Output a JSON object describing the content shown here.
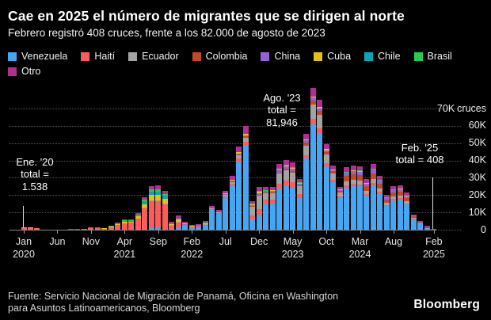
{
  "header": {
    "title": "Cae en 2025 el número de migrantes que se dirigen al norte",
    "subtitle": "Febrero registró 408 cruces, frente a los 82.000 de agosto de 2023"
  },
  "legend": {
    "row_split": 8
  },
  "annotations": [
    {
      "id": "ene20",
      "lines": [
        "Ene. '20",
        "total =",
        "1.538"
      ]
    },
    {
      "id": "ago23",
      "lines": [
        "Ago. '23",
        "total =",
        "81,946"
      ]
    },
    {
      "id": "feb25",
      "lines": [
        "Feb. '25",
        "total = 408"
      ]
    }
  ],
  "y_axis": {
    "unit": "cruces",
    "ticks": [
      {
        "value": 70000,
        "label": "70K"
      },
      {
        "value": 60000,
        "label": "60K"
      },
      {
        "value": 50000,
        "label": "50K"
      },
      {
        "value": 40000,
        "label": "40K"
      },
      {
        "value": 30000,
        "label": "30K"
      },
      {
        "value": 20000,
        "label": "20K"
      },
      {
        "value": 10000,
        "label": "10K"
      },
      {
        "value": 0,
        "label": "0"
      }
    ]
  },
  "footer": {
    "line1": "Fuente: Servicio Nacional de Migración de Panamá, Oficina en Washington",
    "line2": "para Asuntos Latinoamericanos, Bloomberg",
    "logo": "Bloomberg"
  },
  "chart_data": {
    "type": "bar",
    "stacked": true,
    "title": "Cae en 2025 el número de migrantes que se dirigen al norte",
    "ylabel": "cruces",
    "ylim": [
      0,
      70000
    ],
    "grid": "horizontal-dotted",
    "legend_position": "top",
    "x_months": [
      "2020-01",
      "2020-02",
      "2020-03",
      "2020-04",
      "2020-05",
      "2020-06",
      "2020-07",
      "2020-08",
      "2020-09",
      "2020-10",
      "2020-11",
      "2020-12",
      "2021-01",
      "2021-02",
      "2021-03",
      "2021-04",
      "2021-05",
      "2021-06",
      "2021-07",
      "2021-08",
      "2021-09",
      "2021-10",
      "2021-11",
      "2021-12",
      "2022-01",
      "2022-02",
      "2022-03",
      "2022-04",
      "2022-05",
      "2022-06",
      "2022-07",
      "2022-08",
      "2022-09",
      "2022-10",
      "2022-11",
      "2022-12",
      "2023-01",
      "2023-02",
      "2023-03",
      "2023-04",
      "2023-05",
      "2023-06",
      "2023-07",
      "2023-08",
      "2023-09",
      "2023-10",
      "2023-11",
      "2023-12",
      "2024-01",
      "2024-02",
      "2024-03",
      "2024-04",
      "2024-05",
      "2024-06",
      "2024-07",
      "2024-08",
      "2024-09",
      "2024-10",
      "2024-11",
      "2024-12",
      "2025-01",
      "2025-02"
    ],
    "x_ticks": [
      {
        "index": 0,
        "month": "Jan",
        "year": "2020"
      },
      {
        "index": 5,
        "month": "Jun"
      },
      {
        "index": 10,
        "month": "Nov"
      },
      {
        "index": 15,
        "month": "Apr",
        "year": "2021"
      },
      {
        "index": 20,
        "month": "Sep"
      },
      {
        "index": 25,
        "month": "Feb",
        "year": "2022"
      },
      {
        "index": 30,
        "month": "Jul"
      },
      {
        "index": 35,
        "month": "Dec"
      },
      {
        "index": 40,
        "month": "May",
        "year": "2023"
      },
      {
        "index": 45,
        "month": "Oct"
      },
      {
        "index": 50,
        "month": "Mar",
        "year": "2024"
      },
      {
        "index": 55,
        "month": "Aug"
      },
      {
        "index": 61,
        "month": "Feb",
        "year": "2025"
      }
    ],
    "key_points": [
      {
        "label": "Ene. '20 total",
        "value": 1538
      },
      {
        "label": "Ago. '23 total",
        "value": 81946
      },
      {
        "label": "Feb. '25 total",
        "value": 408
      }
    ],
    "series": [
      {
        "name": "Venezuela",
        "color": "#46a6f2",
        "values": [
          60,
          60,
          40,
          0,
          0,
          0,
          0,
          0,
          0,
          30,
          60,
          60,
          30,
          70,
          120,
          175,
          180,
          290,
          565,
          760,
          765,
          680,
          690,
          1190,
          2115,
          1330,
          1495,
          2275,
          11395,
          9315,
          18515,
          25465,
          39525,
          49015,
          5820,
          8660,
          15275,
          15285,
          23620,
          24985,
          24155,
          18205,
          40985,
          60640,
          55700,
          36580,
          27420,
          18225,
          24480,
          25275,
          25050,
          19895,
          25830,
          21115,
          13660,
          17075,
          17540,
          14525,
          6055,
          3295,
          865,
          165
        ]
      },
      {
        "name": "Haití",
        "color": "#fb5d5f",
        "values": [
          950,
          980,
          690,
          90,
          16,
          25,
          120,
          170,
          165,
          360,
          850,
          820,
          620,
          1430,
          2530,
          3610,
          3760,
          6010,
          11680,
          15720,
          15770,
          14010,
          1610,
          2775,
          470,
          295,
          335,
          505,
          415,
          340,
          680,
          930,
          1445,
          1795,
          2330,
          3465,
          1970,
          1970,
          3050,
          3225,
          3115,
          2350,
          2215,
          3280,
          3010,
          1975,
          1480,
          985,
          1080,
          1115,
          1105,
          880,
          1140,
          930,
          605,
          755,
          775,
          640,
          265,
          145,
          110,
          20
        ]
      },
      {
        "name": "Ecuador",
        "color": "#a3a3a3",
        "values": [
          30,
          30,
          20,
          0,
          0,
          0,
          0,
          0,
          0,
          0,
          0,
          0,
          20,
          45,
          80,
          115,
          120,
          195,
          375,
          505,
          510,
          450,
          230,
          395,
          235,
          150,
          165,
          255,
          555,
          455,
          905,
          1240,
          1930,
          2390,
          4990,
          7420,
          3695,
          3700,
          5715,
          6045,
          5845,
          4405,
          5540,
          8195,
          7525,
          4945,
          3705,
          2465,
          2160,
          2230,
          2210,
          1755,
          2280,
          1865,
          1205,
          1505,
          1550,
          1280,
          535,
          290,
          110,
          20
        ]
      },
      {
        "name": "Colombia",
        "color": "#c14a24",
        "values": [
          30,
          30,
          20,
          0,
          0,
          0,
          0,
          0,
          0,
          0,
          0,
          0,
          0,
          0,
          0,
          0,
          0,
          0,
          0,
          0,
          0,
          0,
          90,
          155,
          95,
          60,
          65,
          100,
          140,
          115,
          225,
          310,
          480,
          600,
          500,
          740,
          490,
          495,
          760,
          805,
          780,
          585,
          1660,
          2460,
          2260,
          1485,
          1110,
          740,
          3240,
          3345,
          3315,
          2635,
          3420,
          2795,
          1810,
          2260,
          2320,
          1925,
          800,
          435,
          430,
          80
        ]
      },
      {
        "name": "China",
        "color": "#9263d4",
        "values": [
          30,
          30,
          20,
          0,
          0,
          0,
          0,
          0,
          0,
          0,
          0,
          0,
          0,
          0,
          0,
          0,
          0,
          0,
          0,
          0,
          0,
          0,
          45,
          80,
          140,
          90,
          100,
          150,
          140,
          115,
          225,
          310,
          480,
          600,
          665,
          990,
          985,
          985,
          1525,
          1610,
          1560,
          1175,
          1110,
          1640,
          1505,
          990,
          740,
          490,
          1800,
          1860,
          1840,
          1465,
          1900,
          1550,
          1000,
          1255,
          1290,
          1070,
          445,
          240,
          0,
          0
        ]
      },
      {
        "name": "Cuba",
        "color": "#e2c215",
        "values": [
          200,
          210,
          150,
          30,
          5,
          8,
          40,
          55,
          50,
          110,
          220,
          210,
          120,
          275,
          490,
          700,
          730,
          1165,
          2260,
          3045,
          3050,
          2710,
          690,
          1190,
          470,
          295,
          335,
          505,
          280,
          225,
          450,
          620,
          965,
          1195,
          330,
          495,
          245,
          245,
          380,
          405,
          390,
          295,
          555,
          820,
          755,
          495,
          370,
          245,
          360,
          370,
          370,
          290,
          380,
          310,
          200,
          250,
          260,
          215,
          90,
          50,
          0,
          0
        ]
      },
      {
        "name": "Chile",
        "color": "#0ba6b6",
        "values": [
          60,
          60,
          40,
          0,
          0,
          0,
          0,
          0,
          0,
          0,
          80,
          80,
          80,
          185,
          325,
          465,
          485,
          775,
          1510,
          2030,
          2035,
          1805,
          230,
          395,
          95,
          60,
          65,
          100,
          0,
          0,
          0,
          0,
          0,
          0,
          165,
          245,
          0,
          0,
          0,
          0,
          0,
          0,
          0,
          0,
          0,
          0,
          0,
          0,
          0,
          0,
          0,
          0,
          0,
          0,
          0,
          0,
          0,
          0,
          0,
          0,
          0,
          0
        ]
      },
      {
        "name": "Brasil",
        "color": "#2bc94f",
        "values": [
          30,
          30,
          20,
          0,
          0,
          0,
          0,
          0,
          0,
          0,
          50,
          50,
          50,
          115,
          205,
          290,
          300,
          485,
          940,
          1270,
          1270,
          1130,
          140,
          240,
          45,
          30,
          35,
          50,
          0,
          0,
          0,
          0,
          0,
          0,
          165,
          245,
          245,
          245,
          380,
          405,
          390,
          295,
          0,
          0,
          0,
          0,
          0,
          0,
          360,
          370,
          370,
          290,
          380,
          310,
          200,
          250,
          260,
          215,
          90,
          50,
          0,
          0
        ]
      },
      {
        "name": "Otro",
        "color": "#b22e95",
        "values": [
          148,
          159,
          111,
          32,
          5,
          7,
          46,
          62,
          61,
          102,
          151,
          136,
          87,
          185,
          329,
          463,
          488,
          781,
          1515,
          2031,
          2030,
          1807,
          1005,
          1745,
          1037,
          644,
          732,
          1115,
          969,
          794,
          1582,
          2180,
          3379,
          4178,
          1667,
          2479,
          1729,
          1732,
          2669,
          2817,
          2727,
          2054,
          3322,
          4911,
          4513,
          2961,
          2227,
          1476,
          2521,
          2601,
          2581,
          2049,
          2656,
          2174,
          1406,
          1761,
          1799,
          1493,
          622,
          344,
          643,
          123
        ]
      }
    ]
  }
}
